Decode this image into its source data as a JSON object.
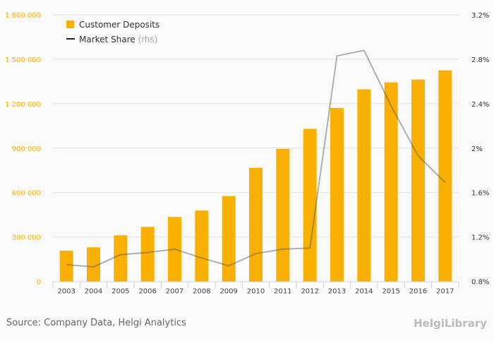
{
  "chart_data": {
    "type": "bar",
    "categories": [
      "2003",
      "2004",
      "2005",
      "2006",
      "2007",
      "2008",
      "2009",
      "2010",
      "2011",
      "2012",
      "2013",
      "2014",
      "2015",
      "2016",
      "2017"
    ],
    "series": [
      {
        "name": "Customer Deposits",
        "type": "bar",
        "axis": "left",
        "color": "#f9b000",
        "values": [
          207000,
          230000,
          311000,
          368000,
          435000,
          478000,
          576000,
          767000,
          895000,
          1030000,
          1171000,
          1297000,
          1344000,
          1363000,
          1425000
        ]
      },
      {
        "name": "Market Share",
        "suffix": "(rhs)",
        "type": "line",
        "axis": "right",
        "color": "#a0a0a0",
        "values": [
          0.95,
          0.93,
          1.04,
          1.06,
          1.09,
          1.01,
          0.94,
          1.05,
          1.09,
          1.1,
          2.83,
          2.88,
          2.38,
          1.93,
          1.69
        ]
      }
    ],
    "left_axis": {
      "ylim": [
        0,
        1800000
      ],
      "ticks": [
        "0",
        "300 000",
        "600 000",
        "900 000",
        "1 200 000",
        "1 500 000",
        "1 800 000"
      ],
      "color": "#f9b000"
    },
    "right_axis": {
      "ylim": [
        0.8,
        3.2
      ],
      "ticks": [
        "0.8%",
        "1.2%",
        "1.6%",
        "2%",
        "2.4%",
        "2.8%",
        "3.2%"
      ]
    },
    "legend_position": "top-left",
    "grid": true
  },
  "footer": {
    "source": "Source: Company Data, Helgi Analytics",
    "logo": "HelgiLibrary"
  }
}
